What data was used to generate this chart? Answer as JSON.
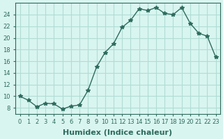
{
  "x": [
    0,
    1,
    2,
    3,
    4,
    5,
    6,
    7,
    8,
    9,
    10,
    11,
    12,
    13,
    14,
    15,
    16,
    17,
    18,
    19,
    20,
    21,
    22,
    23
  ],
  "y": [
    10,
    9.3,
    8.2,
    8.8,
    8.7,
    7.8,
    8.3,
    8.5,
    11.0,
    15.0,
    17.5,
    19.0,
    21.8,
    23.0,
    25.0,
    24.7,
    25.2,
    24.2,
    24.0,
    25.2,
    22.5,
    20.8,
    20.3,
    16.7
  ],
  "line_color": "#2e6b5e",
  "marker": "*",
  "marker_size": 4,
  "bg_color": "#d9f5f0",
  "grid_color": "#b0ddd5",
  "xlabel": "Humidex (Indice chaleur)",
  "xlim": [
    -0.5,
    23.5
  ],
  "ylim": [
    7,
    26
  ],
  "yticks": [
    8,
    10,
    12,
    14,
    16,
    18,
    20,
    22,
    24
  ],
  "xtick_labels": [
    "0",
    "1",
    "2",
    "3",
    "4",
    "5",
    "6",
    "7",
    "8",
    "9",
    "10",
    "11",
    "12",
    "13",
    "14",
    "15",
    "16",
    "17",
    "18",
    "19",
    "20",
    "21",
    "22",
    "23"
  ],
  "tick_color": "#2e6b5e",
  "label_fontsize": 8,
  "tick_fontsize": 6
}
